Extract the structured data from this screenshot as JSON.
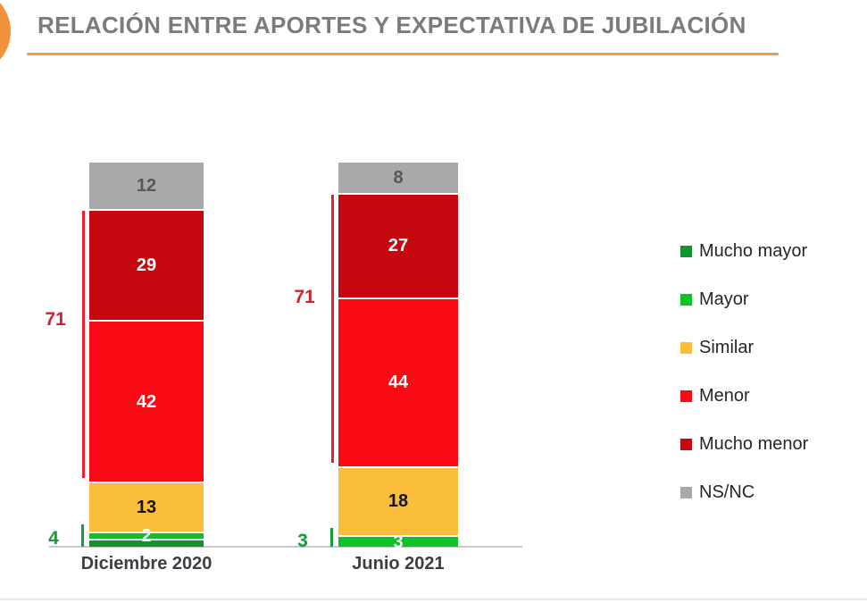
{
  "header": {
    "title": "RELACIÓN ENTRE APORTES Y EXPECTATIVA DE JUBILACIÓN",
    "accent_color": "#f0913c"
  },
  "chart_data": {
    "type": "bar",
    "stacked": true,
    "orientation": "vertical",
    "categories": [
      "Diciembre 2020",
      "Junio 2021"
    ],
    "series": [
      {
        "name": "Mucho mayor",
        "color": "#129330",
        "label_color": "#ffffff",
        "values": [
          2,
          0
        ],
        "labels": [
          "",
          ""
        ]
      },
      {
        "name": "Mayor",
        "color": "#0cc22b",
        "label_color": "#ffffff",
        "values": [
          2,
          3
        ],
        "labels": [
          "2",
          "3"
        ]
      },
      {
        "name": "Similar",
        "color": "#fbbe3b",
        "label_color": "#141414",
        "values": [
          13,
          18
        ],
        "labels": [
          "13",
          "18"
        ]
      },
      {
        "name": "Menor",
        "color": "#fa0a14",
        "label_color": "#ffffff",
        "values": [
          42,
          44
        ],
        "labels": [
          "42",
          "44"
        ]
      },
      {
        "name": "Mucho menor",
        "color": "#c5070f",
        "label_color": "#ffffff",
        "values": [
          29,
          27
        ],
        "labels": [
          "29",
          "27"
        ]
      },
      {
        "name": "NS/NC",
        "color": "#a9a9aa",
        "label_color": "#55575c",
        "values": [
          12,
          8
        ],
        "labels": [
          "12",
          "8"
        ]
      }
    ],
    "annotations": {
      "negative_totals": [
        "71",
        "71"
      ],
      "negative_series": [
        "Menor",
        "Mucho menor"
      ],
      "negative_line_color": "#ef1d29",
      "negative_label_color": "#d0212e",
      "positive_totals": [
        "4",
        "3"
      ],
      "positive_series": [
        "Mucho mayor",
        "Mayor"
      ],
      "positive_color": "#0fa233"
    },
    "ylim": [
      0,
      100
    ],
    "legend_position": "right",
    "grid": false,
    "title": "RELACIÓN ENTRE APORTES Y EXPECTATIVA DE JUBILACIÓN"
  }
}
